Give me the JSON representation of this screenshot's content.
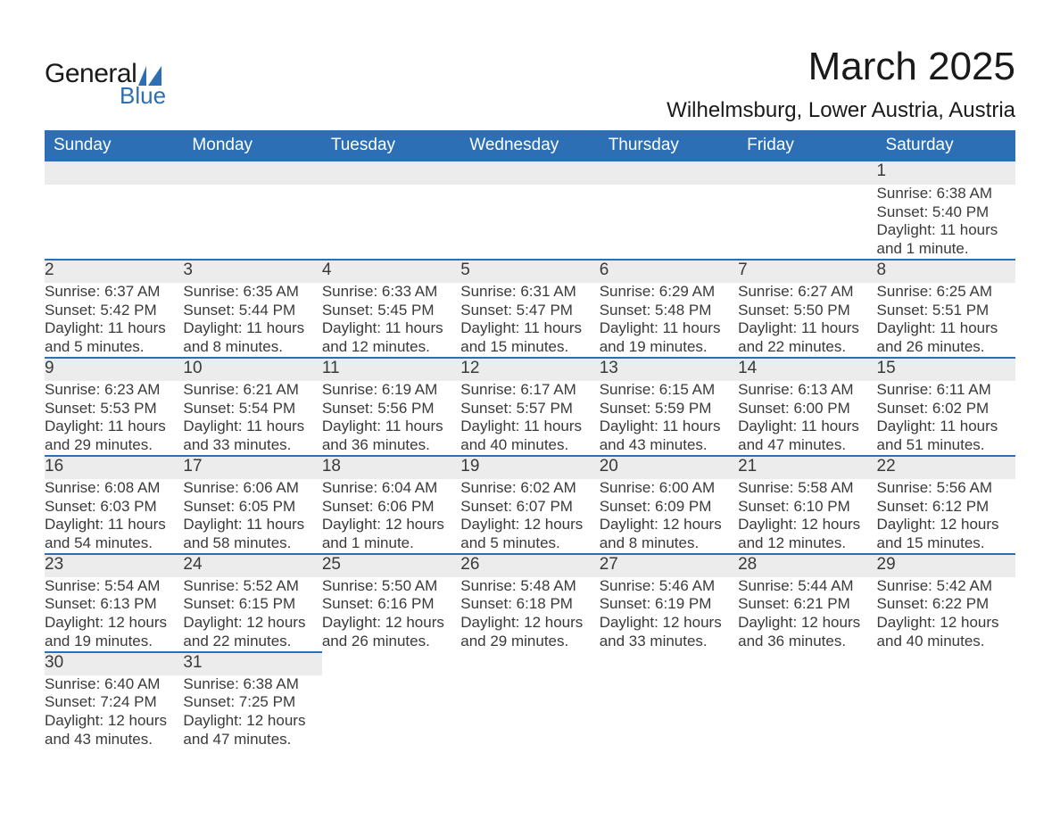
{
  "logo": {
    "word1": "General",
    "word2": "Blue",
    "tri_color": "#2d6fb5"
  },
  "title": "March 2025",
  "location": "Wilhelmsburg, Lower Austria, Austria",
  "colors": {
    "header_bg": "#2d6fb5",
    "header_text": "#ffffff",
    "daynum_bg": "#ececec",
    "row_border": "#2d6fb5",
    "body_text": "#3a3a3a",
    "page_bg": "#ffffff"
  },
  "font": {
    "family": "Arial",
    "th_size_pt": 14,
    "body_size_pt": 13,
    "title_size_pt": 33,
    "loc_size_pt": 18
  },
  "weekdays": [
    "Sunday",
    "Monday",
    "Tuesday",
    "Wednesday",
    "Thursday",
    "Friday",
    "Saturday"
  ],
  "weeks": [
    [
      null,
      null,
      null,
      null,
      null,
      null,
      {
        "n": "1",
        "sr": "Sunrise: 6:38 AM",
        "ss": "Sunset: 5:40 PM",
        "d1": "Daylight: 11 hours",
        "d2": "and 1 minute."
      }
    ],
    [
      {
        "n": "2",
        "sr": "Sunrise: 6:37 AM",
        "ss": "Sunset: 5:42 PM",
        "d1": "Daylight: 11 hours",
        "d2": "and 5 minutes."
      },
      {
        "n": "3",
        "sr": "Sunrise: 6:35 AM",
        "ss": "Sunset: 5:44 PM",
        "d1": "Daylight: 11 hours",
        "d2": "and 8 minutes."
      },
      {
        "n": "4",
        "sr": "Sunrise: 6:33 AM",
        "ss": "Sunset: 5:45 PM",
        "d1": "Daylight: 11 hours",
        "d2": "and 12 minutes."
      },
      {
        "n": "5",
        "sr": "Sunrise: 6:31 AM",
        "ss": "Sunset: 5:47 PM",
        "d1": "Daylight: 11 hours",
        "d2": "and 15 minutes."
      },
      {
        "n": "6",
        "sr": "Sunrise: 6:29 AM",
        "ss": "Sunset: 5:48 PM",
        "d1": "Daylight: 11 hours",
        "d2": "and 19 minutes."
      },
      {
        "n": "7",
        "sr": "Sunrise: 6:27 AM",
        "ss": "Sunset: 5:50 PM",
        "d1": "Daylight: 11 hours",
        "d2": "and 22 minutes."
      },
      {
        "n": "8",
        "sr": "Sunrise: 6:25 AM",
        "ss": "Sunset: 5:51 PM",
        "d1": "Daylight: 11 hours",
        "d2": "and 26 minutes."
      }
    ],
    [
      {
        "n": "9",
        "sr": "Sunrise: 6:23 AM",
        "ss": "Sunset: 5:53 PM",
        "d1": "Daylight: 11 hours",
        "d2": "and 29 minutes."
      },
      {
        "n": "10",
        "sr": "Sunrise: 6:21 AM",
        "ss": "Sunset: 5:54 PM",
        "d1": "Daylight: 11 hours",
        "d2": "and 33 minutes."
      },
      {
        "n": "11",
        "sr": "Sunrise: 6:19 AM",
        "ss": "Sunset: 5:56 PM",
        "d1": "Daylight: 11 hours",
        "d2": "and 36 minutes."
      },
      {
        "n": "12",
        "sr": "Sunrise: 6:17 AM",
        "ss": "Sunset: 5:57 PM",
        "d1": "Daylight: 11 hours",
        "d2": "and 40 minutes."
      },
      {
        "n": "13",
        "sr": "Sunrise: 6:15 AM",
        "ss": "Sunset: 5:59 PM",
        "d1": "Daylight: 11 hours",
        "d2": "and 43 minutes."
      },
      {
        "n": "14",
        "sr": "Sunrise: 6:13 AM",
        "ss": "Sunset: 6:00 PM",
        "d1": "Daylight: 11 hours",
        "d2": "and 47 minutes."
      },
      {
        "n": "15",
        "sr": "Sunrise: 6:11 AM",
        "ss": "Sunset: 6:02 PM",
        "d1": "Daylight: 11 hours",
        "d2": "and 51 minutes."
      }
    ],
    [
      {
        "n": "16",
        "sr": "Sunrise: 6:08 AM",
        "ss": "Sunset: 6:03 PM",
        "d1": "Daylight: 11 hours",
        "d2": "and 54 minutes."
      },
      {
        "n": "17",
        "sr": "Sunrise: 6:06 AM",
        "ss": "Sunset: 6:05 PM",
        "d1": "Daylight: 11 hours",
        "d2": "and 58 minutes."
      },
      {
        "n": "18",
        "sr": "Sunrise: 6:04 AM",
        "ss": "Sunset: 6:06 PM",
        "d1": "Daylight: 12 hours",
        "d2": "and 1 minute."
      },
      {
        "n": "19",
        "sr": "Sunrise: 6:02 AM",
        "ss": "Sunset: 6:07 PM",
        "d1": "Daylight: 12 hours",
        "d2": "and 5 minutes."
      },
      {
        "n": "20",
        "sr": "Sunrise: 6:00 AM",
        "ss": "Sunset: 6:09 PM",
        "d1": "Daylight: 12 hours",
        "d2": "and 8 minutes."
      },
      {
        "n": "21",
        "sr": "Sunrise: 5:58 AM",
        "ss": "Sunset: 6:10 PM",
        "d1": "Daylight: 12 hours",
        "d2": "and 12 minutes."
      },
      {
        "n": "22",
        "sr": "Sunrise: 5:56 AM",
        "ss": "Sunset: 6:12 PM",
        "d1": "Daylight: 12 hours",
        "d2": "and 15 minutes."
      }
    ],
    [
      {
        "n": "23",
        "sr": "Sunrise: 5:54 AM",
        "ss": "Sunset: 6:13 PM",
        "d1": "Daylight: 12 hours",
        "d2": "and 19 minutes."
      },
      {
        "n": "24",
        "sr": "Sunrise: 5:52 AM",
        "ss": "Sunset: 6:15 PM",
        "d1": "Daylight: 12 hours",
        "d2": "and 22 minutes."
      },
      {
        "n": "25",
        "sr": "Sunrise: 5:50 AM",
        "ss": "Sunset: 6:16 PM",
        "d1": "Daylight: 12 hours",
        "d2": "and 26 minutes."
      },
      {
        "n": "26",
        "sr": "Sunrise: 5:48 AM",
        "ss": "Sunset: 6:18 PM",
        "d1": "Daylight: 12 hours",
        "d2": "and 29 minutes."
      },
      {
        "n": "27",
        "sr": "Sunrise: 5:46 AM",
        "ss": "Sunset: 6:19 PM",
        "d1": "Daylight: 12 hours",
        "d2": "and 33 minutes."
      },
      {
        "n": "28",
        "sr": "Sunrise: 5:44 AM",
        "ss": "Sunset: 6:21 PM",
        "d1": "Daylight: 12 hours",
        "d2": "and 36 minutes."
      },
      {
        "n": "29",
        "sr": "Sunrise: 5:42 AM",
        "ss": "Sunset: 6:22 PM",
        "d1": "Daylight: 12 hours",
        "d2": "and 40 minutes."
      }
    ],
    [
      {
        "n": "30",
        "sr": "Sunrise: 6:40 AM",
        "ss": "Sunset: 7:24 PM",
        "d1": "Daylight: 12 hours",
        "d2": "and 43 minutes."
      },
      {
        "n": "31",
        "sr": "Sunrise: 6:38 AM",
        "ss": "Sunset: 7:25 PM",
        "d1": "Daylight: 12 hours",
        "d2": "and 47 minutes."
      },
      null,
      null,
      null,
      null,
      null
    ]
  ]
}
